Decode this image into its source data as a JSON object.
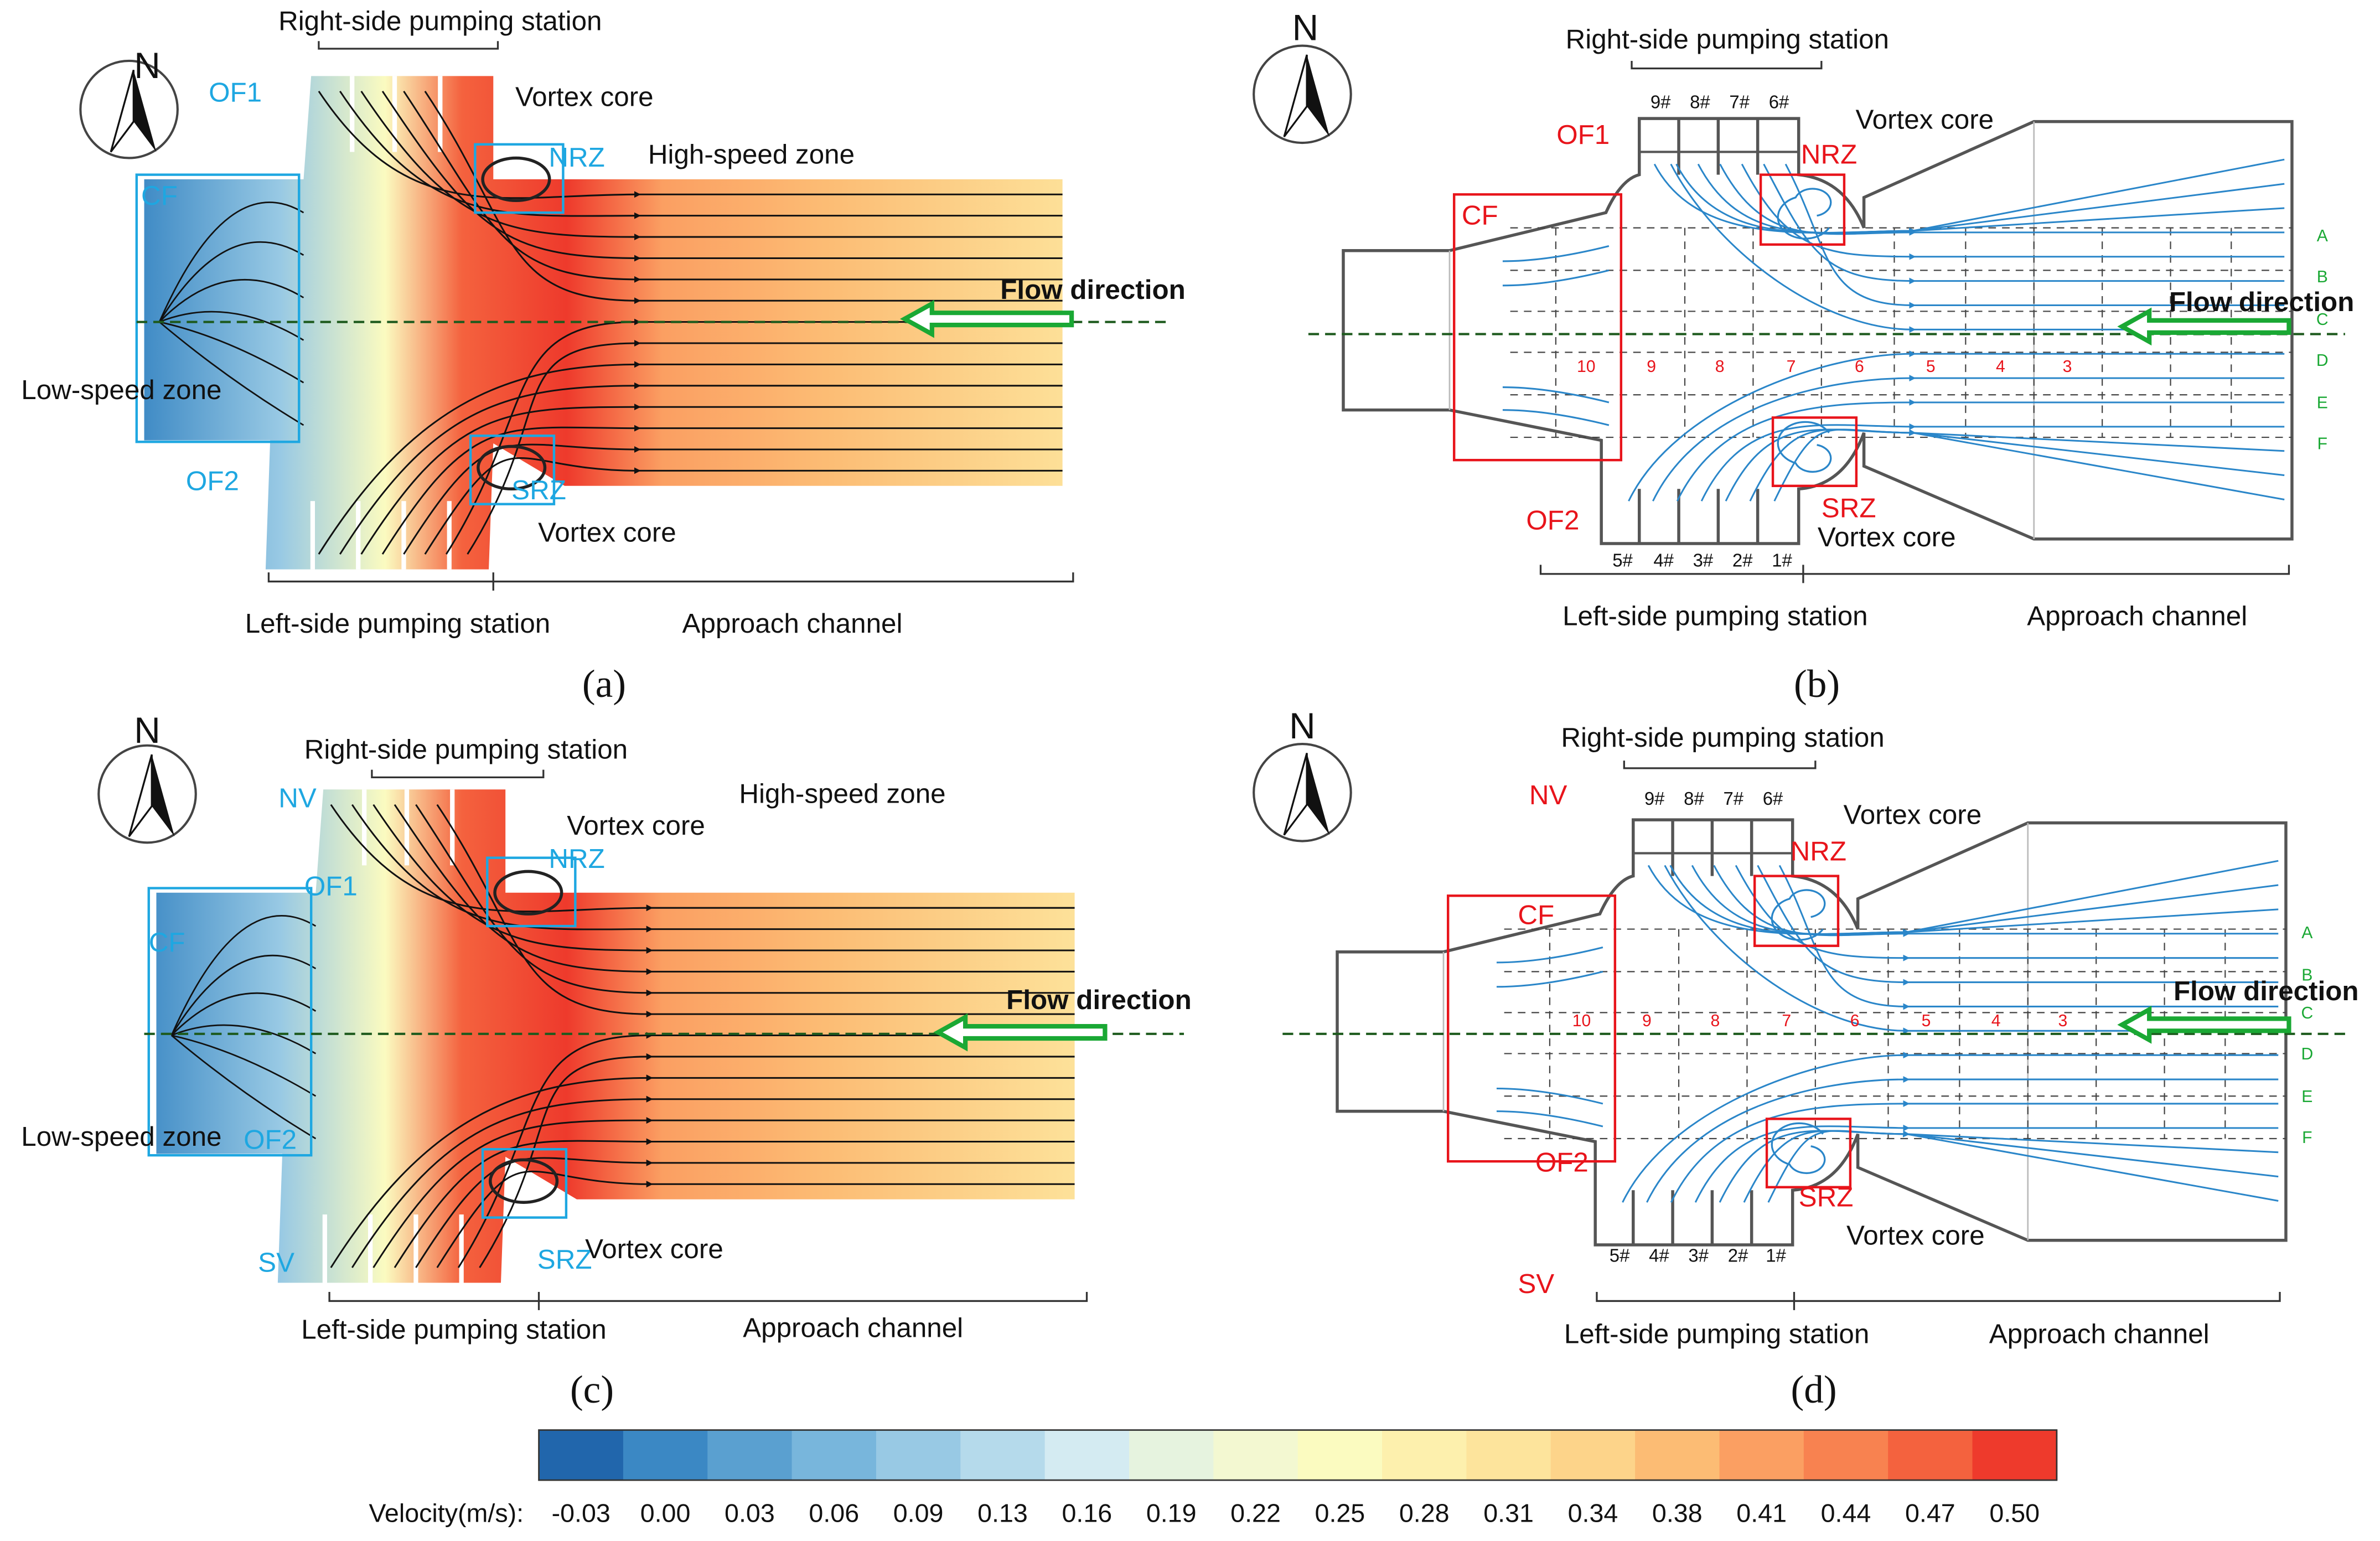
{
  "panels": [
    {
      "label": "(a)",
      "north": "N",
      "top_station": "Right-side pumping station",
      "bottom_station": "Left-side pumping station",
      "channel": "Approach channel",
      "flow": "Flow direction",
      "annotations": {
        "of1": "OF1",
        "nrz": "NRZ",
        "vortex_n": "Vortex core",
        "high": "High-speed zone",
        "cf": "CF",
        "low": "Low-speed zone",
        "srz": "SRZ",
        "vortex_s": "Vortex core",
        "of2": "OF2"
      }
    },
    {
      "label": "(b)",
      "north": "N",
      "top_station": "Right-side pumping station",
      "bottom_station": "Left-side pumping station",
      "channel": "Approach channel",
      "flow": "Flow direction",
      "annotations": {
        "of1": "OF1",
        "vortex_n": "Vortex core",
        "nrz": "NRZ",
        "cf": "CF",
        "of2": "OF2",
        "srz": "SRZ",
        "vortex_s": "Vortex core"
      },
      "units_top": [
        "9#",
        "8#",
        "7#",
        "6#"
      ],
      "units_bottom": [
        "5#",
        "4#",
        "3#",
        "2#",
        "1#"
      ],
      "sections": [
        "10",
        "9",
        "8",
        "7",
        "6",
        "5",
        "4",
        "3"
      ],
      "rows": [
        "A",
        "B",
        "C",
        "D",
        "E",
        "F"
      ]
    },
    {
      "label": "(c)",
      "north": "N",
      "top_station": "Right-side pumping station",
      "bottom_station": "Left-side pumping station",
      "channel": "Approach channel",
      "flow": "Flow direction",
      "annotations": {
        "nv": "NV",
        "vortex_n": "Vortex core",
        "high": "High-speed zone",
        "of1": "OF1",
        "nrz": "NRZ",
        "cf": "CF",
        "low": "Low-speed zone",
        "of2": "OF2",
        "srz": "SRZ",
        "sv": "SV",
        "vortex_s": "Vortex core"
      }
    },
    {
      "label": "(d)",
      "north": "N",
      "top_station": "Right-side pumping station",
      "bottom_station": "Left-side pumping station",
      "channel": "Approach channel",
      "flow": "Flow direction",
      "annotations": {
        "nv": "NV",
        "vortex_n": "Vortex core",
        "nrz": "NRZ",
        "cf": "CF",
        "of2": "OF2",
        "srz": "SRZ",
        "vortex_s": "Vortex core",
        "sv": "SV"
      },
      "units_top": [
        "9#",
        "8#",
        "7#",
        "6#"
      ],
      "units_bottom": [
        "5#",
        "4#",
        "3#",
        "2#",
        "1#"
      ],
      "sections": [
        "10",
        "9",
        "8",
        "7",
        "6",
        "5",
        "4",
        "3"
      ],
      "rows": [
        "A",
        "B",
        "C",
        "D",
        "E",
        "F"
      ]
    }
  ],
  "colorbar": {
    "title": "Velocity(m/s):",
    "ticks": [
      "-0.03",
      "0.00",
      "0.03",
      "0.06",
      "0.09",
      "0.13",
      "0.16",
      "0.19",
      "0.22",
      "0.25",
      "0.28",
      "0.31",
      "0.34",
      "0.38",
      "0.41",
      "0.44",
      "0.47",
      "0.50"
    ],
    "colors": [
      "#2166ac",
      "#3b88c4",
      "#5aa0d0",
      "#78b6dc",
      "#98c9e4",
      "#b5daeb",
      "#d4ebf2",
      "#e6f3df",
      "#f3f8d1",
      "#fbfbc0",
      "#fdf0ad",
      "#fde49c",
      "#fdd48a",
      "#fcbc74",
      "#fb9f62",
      "#f88250",
      "#f4623e",
      "#ee3a2c"
    ]
  }
}
